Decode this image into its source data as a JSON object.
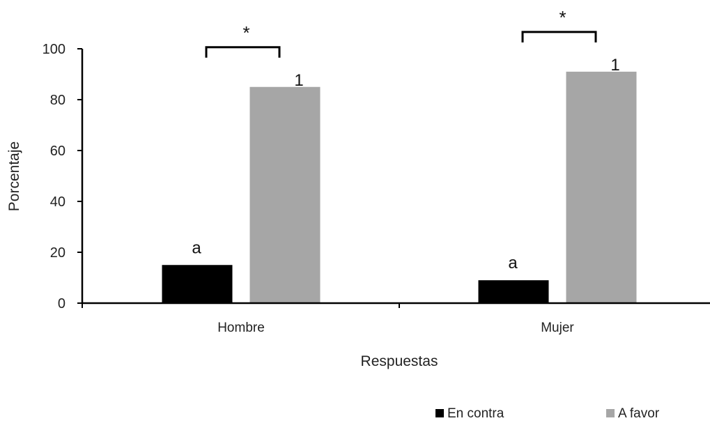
{
  "chart_data": {
    "type": "bar",
    "title": "",
    "xlabel": "Respuestas",
    "ylabel": "Porcentaje",
    "ylim": [
      0,
      100
    ],
    "yticks": [
      0,
      20,
      40,
      60,
      80,
      100
    ],
    "categories": [
      "Hombre",
      "Mujer"
    ],
    "series": [
      {
        "name": "En contra",
        "color": "#000000",
        "values": [
          15,
          9
        ],
        "labels": [
          "a",
          "a"
        ]
      },
      {
        "name": "A favor",
        "color": "#a6a6a6",
        "values": [
          85,
          91
        ],
        "labels": [
          "1",
          "1"
        ]
      }
    ],
    "significance": [
      {
        "category": "Hombre",
        "label": "*"
      },
      {
        "category": "Mujer",
        "label": "*"
      }
    ],
    "legend_position": "bottom-right",
    "grid": false
  }
}
